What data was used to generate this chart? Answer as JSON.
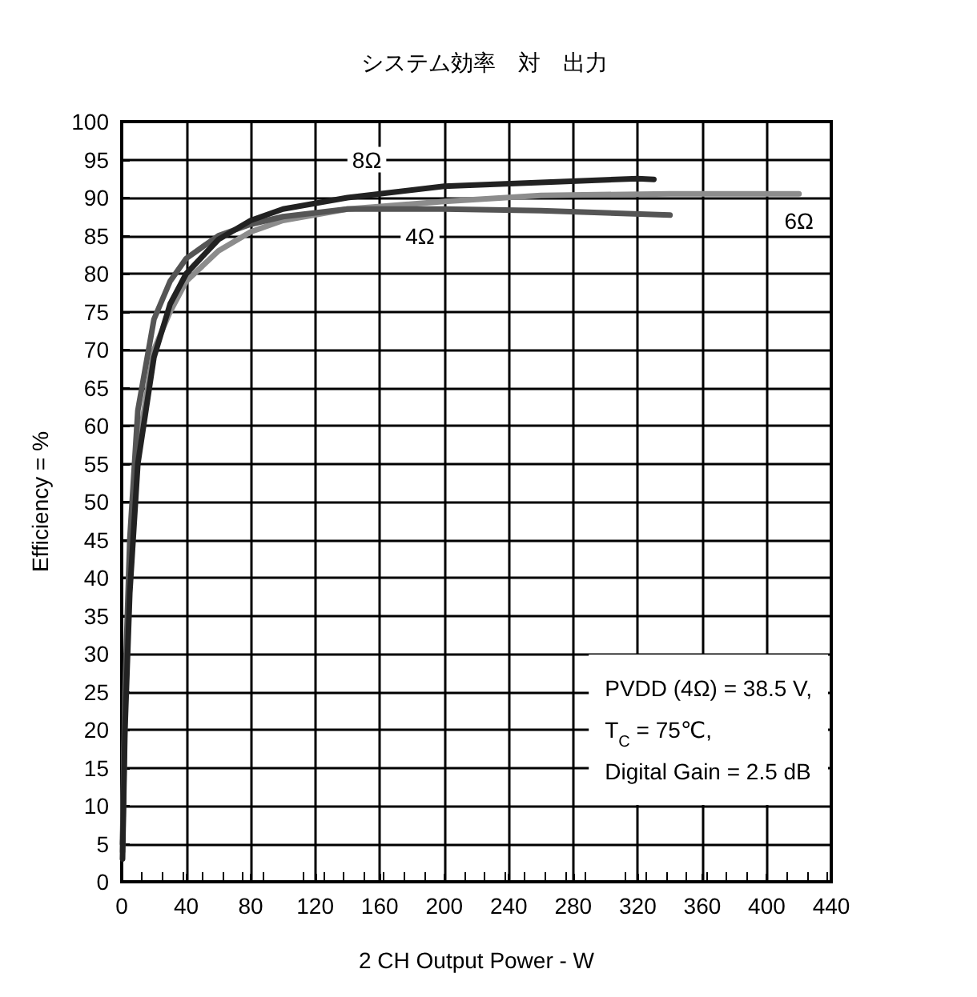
{
  "chart_data": {
    "type": "line",
    "title": "システム効率　対　出力",
    "xlabel": "2 CH Output Power - W",
    "ylabel": "Efficiency = %",
    "xlim": [
      0,
      440
    ],
    "xticks": [
      0,
      40,
      80,
      120,
      160,
      200,
      240,
      280,
      320,
      360,
      400,
      440
    ],
    "ylim": [
      0,
      100
    ],
    "yticks": [
      0,
      5,
      10,
      15,
      20,
      25,
      30,
      35,
      40,
      45,
      50,
      55,
      60,
      65,
      70,
      75,
      80,
      85,
      90,
      95,
      100
    ],
    "grid": true,
    "marker": "none",
    "line_style": "solid",
    "series": [
      {
        "color": "#8c8c8c",
        "x": [
          0.5,
          2,
          5,
          10,
          20,
          30,
          40,
          60,
          80,
          100,
          140,
          200,
          260,
          340,
          420
        ],
        "values": [
          4,
          22,
          40,
          57,
          70,
          75,
          79,
          83,
          85.5,
          87,
          88.5,
          89.5,
          90.3,
          90.5,
          90.5
        ]
      },
      {
        "color": "#555555",
        "x": [
          0.5,
          2,
          5,
          10,
          20,
          30,
          40,
          60,
          80,
          100,
          140,
          200,
          260,
          340
        ],
        "values": [
          5,
          25,
          45,
          62,
          74,
          79,
          82,
          85,
          86.5,
          87.5,
          88.5,
          88.5,
          88.3,
          87.7
        ]
      },
      {
        "color": "#222222",
        "x": [
          0.5,
          2,
          5,
          10,
          20,
          30,
          40,
          60,
          80,
          100,
          140,
          200,
          260,
          320,
          330
        ],
        "values": [
          3,
          20,
          38,
          55,
          69,
          76,
          80,
          84.5,
          87,
          88.5,
          90,
          91.5,
          92,
          92.5,
          92.4
        ]
      }
    ],
    "annotations": [
      {
        "text": "8Ω",
        "x": 152,
        "y": 95
      },
      {
        "text": "4Ω",
        "x": 185,
        "y": 85
      },
      {
        "text": "6Ω",
        "x": 420,
        "y": 87
      },
      "PVDD (4Ω) = 38.5 V,",
      "T$_{C}$ = 75℃,",
      "Digital Gain = 2.5 dB"
    ]
  }
}
